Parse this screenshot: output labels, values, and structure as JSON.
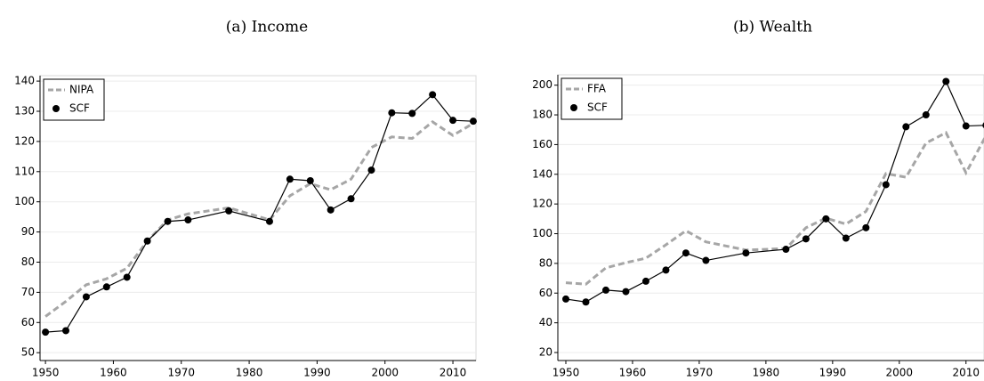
{
  "chart_data": [
    {
      "type": "line",
      "title": "(a) Income",
      "x": [
        1950,
        1953,
        1956,
        1959,
        1962,
        1965,
        1968,
        1971,
        1977,
        1983,
        1986,
        1989,
        1992,
        1995,
        1998,
        2001,
        2004,
        2007,
        2010,
        2013
      ],
      "series": [
        {
          "name": "NIPA",
          "color": "#a6a6a6",
          "dashed": true,
          "marker": "none",
          "values": [
            62,
            67,
            72.5,
            74.5,
            78,
            87,
            94,
            96,
            98,
            94,
            102,
            106,
            104,
            107.5,
            118,
            121.5,
            121,
            126.5,
            122,
            126
          ]
        },
        {
          "name": "SCF",
          "color": "#000000",
          "dashed": false,
          "marker": "circle",
          "values": [
            56.8,
            57.3,
            68.5,
            71.8,
            75,
            87,
            93.5,
            94,
            97,
            93.5,
            107.5,
            107,
            97.3,
            101,
            110.5,
            129.5,
            129.3,
            135.5,
            127,
            126.7
          ]
        }
      ],
      "xlim": [
        1949.2,
        2013.4
      ],
      "xticks": [
        1950,
        1960,
        1970,
        1980,
        1990,
        2000,
        2010
      ],
      "ylim": [
        47.4,
        141.8
      ],
      "yticks": [
        50,
        60,
        70,
        80,
        90,
        100,
        110,
        120,
        130,
        140
      ],
      "grid": true,
      "legend": "upper-left"
    },
    {
      "type": "line",
      "title": "(b) Wealth",
      "x": [
        1950,
        1953,
        1956,
        1959,
        1962,
        1965,
        1968,
        1971,
        1977,
        1983,
        1986,
        1989,
        1992,
        1995,
        1998,
        2001,
        2004,
        2007,
        2010,
        2013
      ],
      "series": [
        {
          "name": "FFA",
          "color": "#a6a6a6",
          "dashed": true,
          "marker": "none",
          "values": [
            67,
            66,
            77,
            80.5,
            83.5,
            92.5,
            102,
            94.5,
            89,
            90,
            104,
            110.5,
            106.5,
            115,
            140.5,
            138,
            161,
            168,
            141,
            166
          ]
        },
        {
          "name": "SCF",
          "color": "#000000",
          "dashed": false,
          "marker": "circle",
          "values": [
            56,
            54,
            62,
            61,
            68,
            75.5,
            87,
            82,
            87,
            89.5,
            96.5,
            110,
            97,
            104,
            133,
            172,
            180,
            202.5,
            172.5,
            173
          ]
        }
      ],
      "xlim": [
        1948.8,
        2012.7
      ],
      "xticks": [
        1950,
        1960,
        1970,
        1980,
        1990,
        2000,
        2010
      ],
      "ylim": [
        14.6,
        207
      ],
      "yticks": [
        20,
        40,
        60,
        80,
        100,
        120,
        140,
        160,
        180,
        200
      ],
      "grid": true,
      "legend": "upper-left"
    }
  ]
}
